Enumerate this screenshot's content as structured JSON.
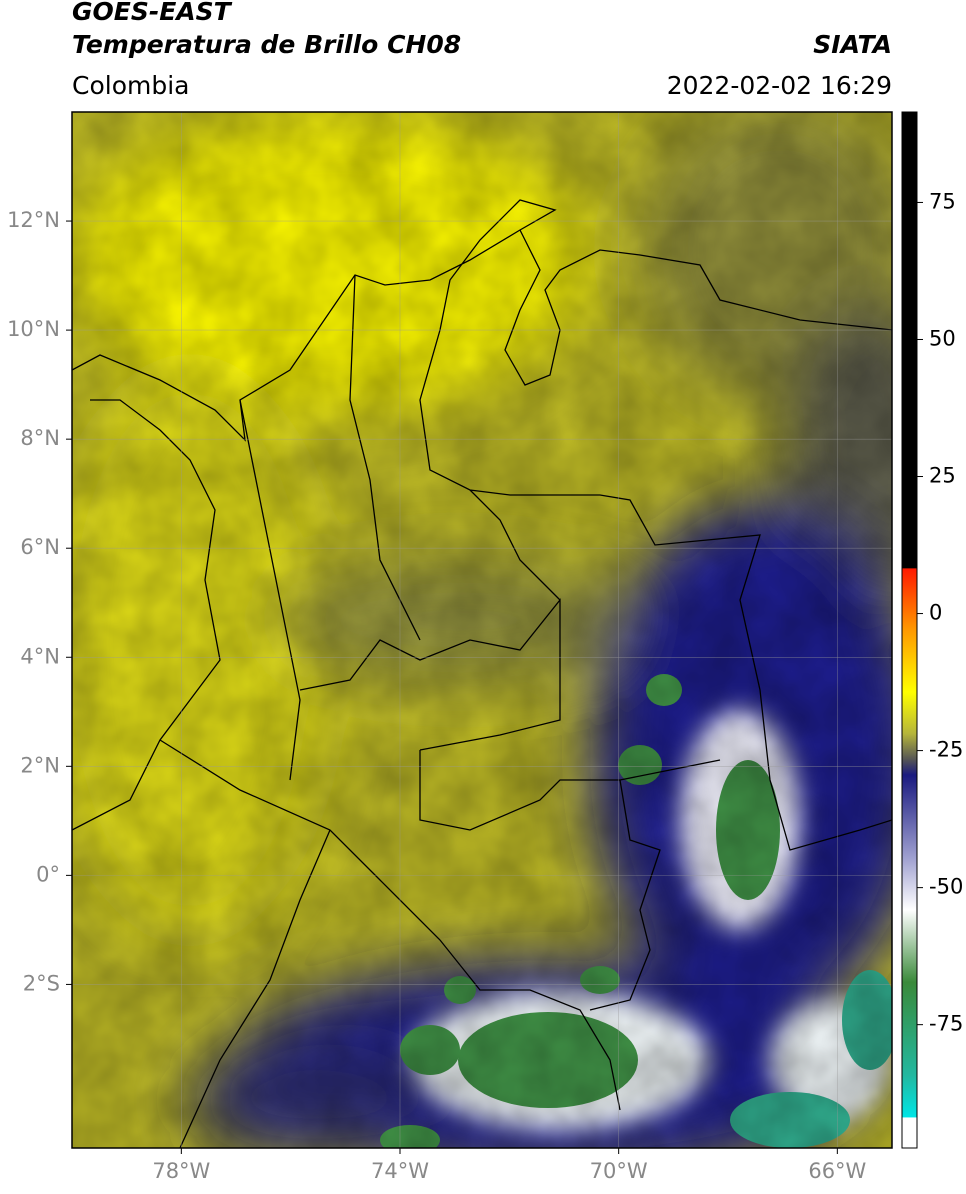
{
  "header": {
    "title": "GOES-EAST",
    "subtitle": "Temperatura de Brillo CH08",
    "region": "Colombia",
    "source": "SIATA",
    "datetime": "2022-02-02 16:29"
  },
  "map": {
    "xlim": [
      -80,
      -65
    ],
    "ylim": [
      -5,
      14
    ],
    "xticks": [
      {
        "value": -78,
        "label": "78°W"
      },
      {
        "value": -74,
        "label": "74°W"
      },
      {
        "value": -70,
        "label": "70°W"
      },
      {
        "value": -66,
        "label": "66°W"
      }
    ],
    "yticks": [
      {
        "value": 12,
        "label": "12°N"
      },
      {
        "value": 10,
        "label": "10°N"
      },
      {
        "value": 8,
        "label": "8°N"
      },
      {
        "value": 6,
        "label": "6°N"
      },
      {
        "value": 4,
        "label": "4°N"
      },
      {
        "value": 2,
        "label": "2°N"
      },
      {
        "value": 0,
        "label": "0°"
      },
      {
        "value": -2,
        "label": "2°S"
      }
    ],
    "grid": true
  },
  "colorbar": {
    "lim": [
      -97.5,
      91.5
    ],
    "ticks": [
      75,
      50,
      25,
      0,
      -25,
      -50,
      -75
    ]
  }
}
